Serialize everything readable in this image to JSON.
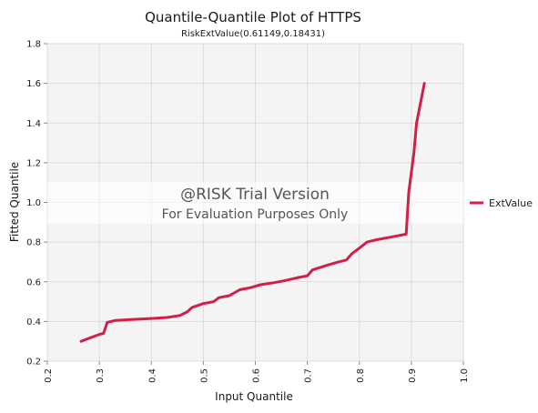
{
  "chart_data": {
    "type": "line",
    "title": "Quantile-Quantile Plot of HTTPS",
    "subtitle": "RiskExtValue(0.61149,0.18431)",
    "xlabel": "Input Quantile",
    "ylabel": "Fitted Quantile",
    "xlim": [
      0.2,
      1.0
    ],
    "ylim": [
      0.2,
      1.8
    ],
    "x_ticks": [
      "0.2",
      "0.3",
      "0.4",
      "0.5",
      "0.6",
      "0.7",
      "0.8",
      "0.9",
      "1.0"
    ],
    "y_ticks": [
      "0.2",
      "0.4",
      "0.6",
      "0.8",
      "1.0",
      "1.2",
      "1.4",
      "1.6",
      "1.8"
    ],
    "grid": true,
    "legend_position": "right",
    "series": [
      {
        "name": "ExtValue",
        "color": "#d21f47",
        "points": [
          [
            0.265,
            0.3
          ],
          [
            0.28,
            0.315
          ],
          [
            0.3,
            0.335
          ],
          [
            0.308,
            0.34
          ],
          [
            0.312,
            0.37
          ],
          [
            0.315,
            0.395
          ],
          [
            0.33,
            0.405
          ],
          [
            0.36,
            0.41
          ],
          [
            0.4,
            0.415
          ],
          [
            0.43,
            0.42
          ],
          [
            0.455,
            0.43
          ],
          [
            0.47,
            0.45
          ],
          [
            0.478,
            0.47
          ],
          [
            0.5,
            0.49
          ],
          [
            0.52,
            0.5
          ],
          [
            0.53,
            0.52
          ],
          [
            0.55,
            0.53
          ],
          [
            0.57,
            0.56
          ],
          [
            0.59,
            0.57
          ],
          [
            0.61,
            0.585
          ],
          [
            0.635,
            0.595
          ],
          [
            0.655,
            0.605
          ],
          [
            0.68,
            0.62
          ],
          [
            0.7,
            0.63
          ],
          [
            0.71,
            0.66
          ],
          [
            0.74,
            0.685
          ],
          [
            0.76,
            0.7
          ],
          [
            0.775,
            0.71
          ],
          [
            0.785,
            0.74
          ],
          [
            0.8,
            0.77
          ],
          [
            0.815,
            0.8
          ],
          [
            0.83,
            0.81
          ],
          [
            0.86,
            0.825
          ],
          [
            0.89,
            0.84
          ],
          [
            0.895,
            1.05
          ],
          [
            0.905,
            1.25
          ],
          [
            0.91,
            1.4
          ],
          [
            0.925,
            1.6
          ]
        ]
      }
    ],
    "watermark": {
      "line1": "@RISK Trial Version",
      "line2": "For Evaluation Purposes Only"
    }
  }
}
